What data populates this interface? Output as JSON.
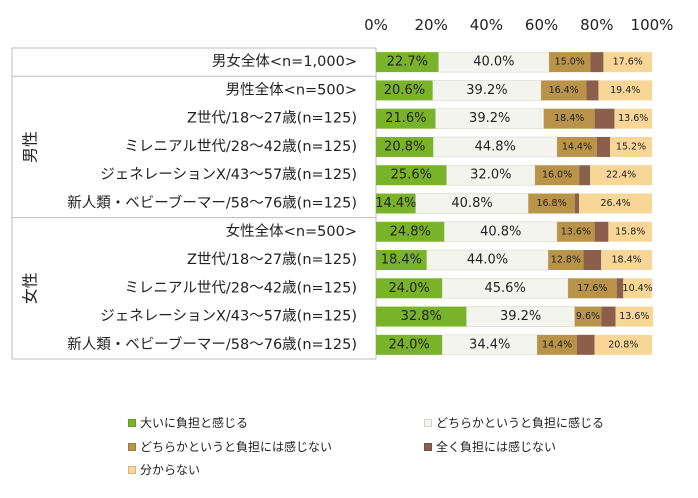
{
  "chart_data": {
    "type": "bar",
    "orientation": "horizontal",
    "stacked": true,
    "percent": true,
    "xlim": [
      0,
      100
    ],
    "x_ticks": [
      "0%",
      "20%",
      "40%",
      "60%",
      "80%",
      "100%"
    ],
    "groups": [
      {
        "label": "",
        "rows": [
          0
        ]
      },
      {
        "label": "男性",
        "rows": [
          1,
          2,
          3,
          4,
          5
        ]
      },
      {
        "label": "女性",
        "rows": [
          6,
          7,
          8,
          9,
          10
        ]
      }
    ],
    "categories": [
      "男女全体<n=1,000>",
      "男性全体<n=500>",
      "Z世代/18～27歳(n=125)",
      "ミレニアル世代/28～42歳(n=125)",
      "ジェネレーションX/43～57歳(n=125)",
      "新人類・ベビーブーマー/58～76歳(n=125)",
      "女性全体<n=500>",
      "Z世代/18～27歳(n=125)",
      "ミレニアル世代/28～42歳(n=125)",
      "ジェネレーションX/43～57歳(n=125)",
      "新人類・ベビーブーマー/58～76歳(n=125)"
    ],
    "series": [
      {
        "name": "大いに負担と感じる",
        "color": "#79b32a",
        "values": [
          22.7,
          20.6,
          21.6,
          20.8,
          25.6,
          14.4,
          24.8,
          18.4,
          24.0,
          32.8,
          24.0
        ],
        "labels": [
          "22.7%",
          "20.6%",
          "21.6%",
          "20.8%",
          "25.6%",
          "14.4%",
          "24.8%",
          "18.4%",
          "24.0%",
          "32.8%",
          "24.0%"
        ]
      },
      {
        "name": "どちらかというと負担に感じる",
        "color": "#f4f4ef",
        "values": [
          40.0,
          39.2,
          39.2,
          44.8,
          32.0,
          40.8,
          40.8,
          44.0,
          45.6,
          39.2,
          34.4
        ],
        "labels": [
          "40.0%",
          "39.2%",
          "39.2%",
          "44.8%",
          "32.0%",
          "40.8%",
          "40.8%",
          "44.0%",
          "45.6%",
          "39.2%",
          "34.4%"
        ]
      },
      {
        "name": "どちらかというと負担には感じない",
        "color": "#b9934a",
        "values": [
          15.0,
          16.4,
          18.4,
          14.4,
          16.0,
          16.8,
          13.6,
          12.8,
          17.6,
          9.6,
          14.4
        ],
        "labels": [
          "15.0%",
          "16.4%",
          "18.4%",
          "14.4%",
          "16.0%",
          "16.8%",
          "13.6%",
          "12.8%",
          "17.6%",
          "9.6%",
          "14.4%"
        ]
      },
      {
        "name": "全く負担には感じない",
        "color": "#8b5f4c",
        "values": [
          4.7,
          4.4,
          7.2,
          4.8,
          4.0,
          1.6,
          5.0,
          6.4,
          2.4,
          5.2,
          6.4
        ],
        "labels": [
          "",
          "",
          "",
          "",
          "",
          "",
          "",
          "",
          "",
          "",
          ""
        ]
      },
      {
        "name": "分からない",
        "color": "#f7d697",
        "values": [
          17.6,
          19.4,
          13.6,
          15.2,
          22.4,
          26.4,
          15.8,
          18.4,
          10.4,
          13.6,
          20.8
        ],
        "labels": [
          "17.6%",
          "19.4%",
          "13.6%",
          "15.2%",
          "22.4%",
          "26.4%",
          "15.8%",
          "18.4%",
          "10.4%",
          "13.6%",
          "20.8%"
        ]
      }
    ]
  }
}
